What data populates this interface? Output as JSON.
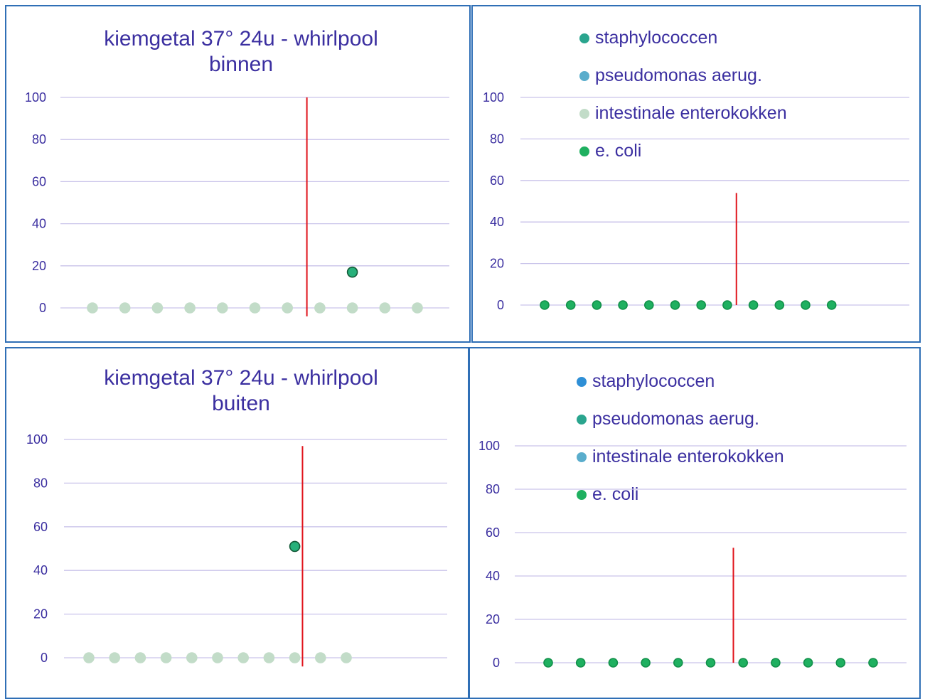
{
  "colors": {
    "grid": "#c9c3ea",
    "axis_text": "#3b2fa0",
    "red_line": "#e0141c",
    "border": "#2f6fb6"
  },
  "chart_data": [
    {
      "type": "scatter",
      "title": "kiemgetal 37° 24u - whirlpool binnen",
      "title_lines": [
        "kiemgetal 37° 24u - whirlpool",
        "binnen"
      ],
      "ylim": [
        0,
        100
      ],
      "yticks": [
        "0",
        "20",
        "40",
        "60",
        "80",
        "100"
      ],
      "grid": true,
      "series": [
        {
          "values": [
            0,
            0,
            0,
            0,
            0,
            0,
            0,
            0,
            0,
            0,
            0
          ],
          "color": "#c2dcc8",
          "stroke": "#c2dcc8"
        },
        {
          "x_index": 8,
          "values": [
            17
          ],
          "color": "#27b07a",
          "stroke": "#145a38"
        }
      ],
      "vline": {
        "after_index": 6.6,
        "ymin": -4,
        "ymax": 100
      }
    },
    {
      "type": "scatter",
      "ylim": [
        0,
        100
      ],
      "yticks": [
        "0",
        "20",
        "40",
        "60",
        "80",
        "100"
      ],
      "grid": true,
      "legend": [
        {
          "label": "staphylococcen",
          "color": "#2aa58e"
        },
        {
          "label": "pseudomonas aerug.",
          "color": "#5aadcc"
        },
        {
          "label": "intestinale enterokokken",
          "color": "#c2dcc8"
        },
        {
          "label": "e. coli",
          "color": "#1fb060"
        }
      ],
      "series": [
        {
          "values": [
            0,
            0,
            0,
            0,
            0,
            0,
            0,
            0,
            0,
            0,
            0,
            0
          ],
          "color": "#1fb060",
          "stroke": "#12904a"
        }
      ],
      "vline": {
        "after_index": 7.35,
        "ymin": 0,
        "ymax": 54
      }
    },
    {
      "type": "scatter",
      "title": "kiemgetal 37° 24u - whirlpool buiten",
      "title_lines": [
        "kiemgetal 37° 24u - whirlpool",
        "buiten"
      ],
      "ylim": [
        0,
        100
      ],
      "yticks": [
        "0",
        "20",
        "40",
        "60",
        "80",
        "100"
      ],
      "grid": true,
      "series": [
        {
          "values": [
            0,
            0,
            0,
            0,
            0,
            0,
            0,
            0,
            0,
            0,
            0
          ],
          "color": "#c2dcc8",
          "stroke": "#c2dcc8"
        },
        {
          "x_index": 8,
          "values": [
            51
          ],
          "color": "#27b07a",
          "stroke": "#145a38"
        }
      ],
      "vline": {
        "after_index": 8.3,
        "ymin": -4,
        "ymax": 97
      }
    },
    {
      "type": "scatter",
      "ylim": [
        0,
        100
      ],
      "yticks": [
        "0",
        "20",
        "40",
        "60",
        "80",
        "100"
      ],
      "grid": true,
      "legend": [
        {
          "label": "staphylococcen",
          "color": "#2e8fd6"
        },
        {
          "label": "pseudomonas aerug.",
          "color": "#2aa58e"
        },
        {
          "label": "intestinale enterokokken",
          "color": "#5aadcc"
        },
        {
          "label": "e. coli",
          "color": "#1fb060"
        }
      ],
      "series": [
        {
          "values": [
            0,
            0,
            0,
            0,
            0,
            0,
            0,
            0,
            0,
            0,
            0
          ],
          "color": "#1fb060",
          "stroke": "#12904a"
        }
      ],
      "vline": {
        "after_index": 5.7,
        "ymin": 0,
        "ymax": 53
      }
    }
  ]
}
